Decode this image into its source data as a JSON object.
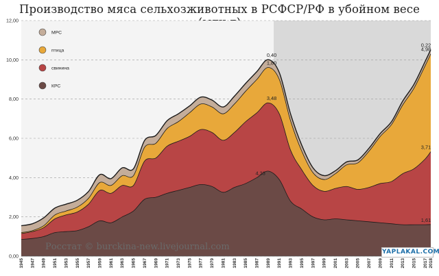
{
  "title": "Производство мяса сельхозживотных в РСФСР/РФ в убойном весе (млн.т)",
  "watermark": "Росстат © burckina-new.livejournal.com",
  "logo_text": "YAPLAKAL.COM",
  "colors": {
    "krs": "#6b4a46",
    "svinina": "#b84545",
    "ptitsa": "#e8a83a",
    "mrs": "#c4ad9a",
    "shade": "#d9d9d9",
    "outline": "#1a1a1a"
  },
  "chart_data": {
    "type": "area",
    "stacked": true,
    "title": "Производство мяса сельхозживотных в РСФСР/РФ в убойном весе (млн.т)",
    "xlabel": "",
    "ylabel": "",
    "ylim": [
      0,
      12
    ],
    "yticks": [
      "0,00",
      "2,00",
      "4,00",
      "6,00",
      "8,00",
      "10,00",
      "12,00"
    ],
    "xticks": [
      "1945",
      "1947",
      "1949",
      "1951",
      "1953",
      "1955",
      "1957",
      "1959",
      "1961",
      "1963",
      "1965",
      "1967",
      "1969",
      "1971",
      "1973",
      "1975",
      "1977",
      "1979",
      "1981",
      "1983",
      "1985",
      "1987",
      "1989",
      "1991",
      "1993",
      "1995",
      "1997",
      "1999",
      "2001",
      "2003",
      "2005",
      "2007",
      "2009",
      "2011",
      "2013",
      "2015",
      "2017",
      "2018"
    ],
    "grid": true,
    "legend_position": "top-left",
    "shaded_period": [
      1990,
      2018
    ],
    "x": [
      1945,
      1947,
      1949,
      1951,
      1953,
      1955,
      1957,
      1959,
      1961,
      1963,
      1965,
      1967,
      1969,
      1971,
      1973,
      1975,
      1977,
      1979,
      1981,
      1983,
      1985,
      1987,
      1989,
      1991,
      1993,
      1995,
      1997,
      1999,
      2001,
      2003,
      2005,
      2007,
      2009,
      2011,
      2013,
      2015,
      2017,
      2018
    ],
    "series": [
      {
        "name": "КРС",
        "values": [
          0.85,
          0.9,
          1.0,
          1.2,
          1.25,
          1.3,
          1.5,
          1.8,
          1.7,
          2.0,
          2.3,
          2.9,
          3.0,
          3.2,
          3.35,
          3.5,
          3.65,
          3.55,
          3.25,
          3.5,
          3.7,
          4.0,
          4.33,
          3.9,
          2.8,
          2.4,
          2.0,
          1.85,
          1.9,
          1.85,
          1.8,
          1.75,
          1.7,
          1.65,
          1.6,
          1.6,
          1.6,
          1.61
        ]
      },
      {
        "name": "свинина",
        "values": [
          0.3,
          0.35,
          0.45,
          0.7,
          0.85,
          0.95,
          1.15,
          1.55,
          1.5,
          1.6,
          1.3,
          1.95,
          2.0,
          2.4,
          2.5,
          2.6,
          2.8,
          2.75,
          2.65,
          2.8,
          3.15,
          3.3,
          3.48,
          3.35,
          2.6,
          2.0,
          1.6,
          1.45,
          1.55,
          1.7,
          1.6,
          1.75,
          2.0,
          2.15,
          2.6,
          2.85,
          3.35,
          3.71
        ]
      },
      {
        "name": "птица",
        "values": [
          0.05,
          0.05,
          0.1,
          0.2,
          0.2,
          0.25,
          0.3,
          0.4,
          0.4,
          0.5,
          0.5,
          0.7,
          0.75,
          0.9,
          1.0,
          1.2,
          1.3,
          1.3,
          1.35,
          1.45,
          1.55,
          1.7,
          1.8,
          1.75,
          1.5,
          0.95,
          0.65,
          0.6,
          0.75,
          1.1,
          1.35,
          1.85,
          2.4,
          2.9,
          3.5,
          4.1,
          4.75,
          4.98
        ]
      },
      {
        "name": "МРС",
        "values": [
          0.35,
          0.35,
          0.4,
          0.35,
          0.35,
          0.35,
          0.35,
          0.4,
          0.35,
          0.4,
          0.35,
          0.35,
          0.4,
          0.4,
          0.4,
          0.35,
          0.35,
          0.35,
          0.35,
          0.4,
          0.4,
          0.4,
          0.4,
          0.35,
          0.35,
          0.3,
          0.25,
          0.2,
          0.15,
          0.15,
          0.15,
          0.15,
          0.15,
          0.15,
          0.2,
          0.2,
          0.22,
          0.22
        ]
      }
    ],
    "data_labels": [
      {
        "text": "0,40",
        "x": 1990,
        "series": "МРС"
      },
      {
        "text": "1,80",
        "x": 1990,
        "series": "птица"
      },
      {
        "text": "3,48",
        "x": 1990,
        "series": "свинина"
      },
      {
        "text": "4,33",
        "x": 1988,
        "series": "КРС"
      },
      {
        "text": "0,22",
        "x": 2018,
        "series": "МРС"
      },
      {
        "text": "4,98",
        "x": 2018,
        "series": "птица"
      },
      {
        "text": "3,71",
        "x": 2018,
        "series": "свинина"
      },
      {
        "text": "1,61",
        "x": 2018,
        "series": "КРС"
      }
    ],
    "legend": [
      {
        "label": "МРС",
        "key": "mrs"
      },
      {
        "label": "птица",
        "key": "ptitsa"
      },
      {
        "label": "свинина",
        "key": "svinina"
      },
      {
        "label": "КРС",
        "key": "krs"
      }
    ]
  }
}
